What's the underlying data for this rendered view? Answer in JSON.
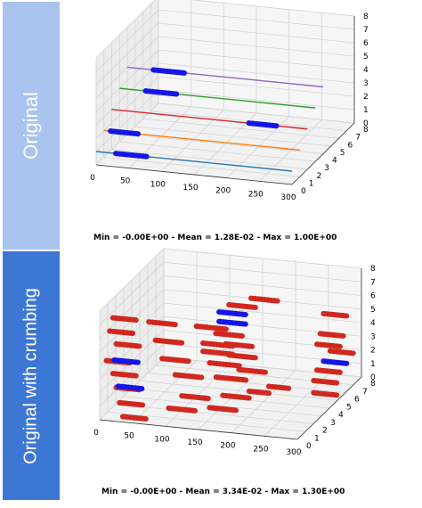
{
  "panels": [
    {
      "side_label": "Original",
      "stats": "Min = -0.00E+00 - Mean = 1.28E-02 - Max = 1.00E+00"
    },
    {
      "side_label": "Original with crumbing",
      "stats": "Min = -0.00E+00 - Mean = 3.34E-02 - Max = 1.30E+00"
    }
  ],
  "colors": {
    "tab_original": "#a8c3ee",
    "tab_crumbing": "#3d77d6",
    "highlight": "#1515e8",
    "crumb": "#d0281e"
  },
  "chart_data": [
    {
      "type": "line3d",
      "title": "",
      "x_ticks": [
        "0",
        "50",
        "100",
        "150",
        "200",
        "250",
        "300"
      ],
      "y_ticks": [
        "0",
        "1",
        "2",
        "3",
        "4",
        "5",
        "6",
        "7",
        "8"
      ],
      "z_ticks": [
        "0",
        "1",
        "2",
        "3",
        "4",
        "5",
        "6",
        "7",
        "8"
      ],
      "xlim": [
        0,
        300
      ],
      "ylim": [
        0,
        8
      ],
      "zlim": [
        0,
        8
      ],
      "grid": true,
      "series": [
        {
          "y": 0,
          "z": 1,
          "x": [
            0,
            300
          ],
          "color": "#1f77b4",
          "highlight": [
            [
              30,
              80
            ]
          ]
        },
        {
          "y": 1,
          "z": 2,
          "x": [
            0,
            300
          ],
          "color": "#ff7f0e",
          "highlight": [
            [
              10,
              55
            ]
          ]
        },
        {
          "y": 2,
          "z": 3,
          "x": [
            0,
            300
          ],
          "color": "#d62728",
          "highlight": [
            [
              210,
              255
            ]
          ]
        },
        {
          "y": 3,
          "z": 4,
          "x": [
            0,
            300
          ],
          "color": "#2ca02c",
          "highlight": [
            [
              40,
              90
            ]
          ]
        },
        {
          "y": 4,
          "z": 5,
          "x": [
            0,
            300
          ],
          "color": "#9467bd",
          "highlight": [
            [
              40,
              90
            ]
          ]
        }
      ]
    },
    {
      "type": "scatter3d",
      "title": "",
      "x_ticks": [
        "0",
        "50",
        "100",
        "150",
        "200",
        "250",
        "300"
      ],
      "y_ticks": [
        "0",
        "1",
        "2",
        "3",
        "4",
        "5",
        "6",
        "7",
        "8"
      ],
      "z_ticks": [
        "0",
        "1",
        "2",
        "3",
        "4",
        "5",
        "6",
        "7",
        "8"
      ],
      "xlim": [
        0,
        300
      ],
      "ylim": [
        0,
        8
      ],
      "zlim": [
        0,
        8
      ],
      "grid": true,
      "segments": [
        {
          "x": [
            20,
            55
          ],
          "y": 0,
          "z": 7.6,
          "c": "crumb"
        },
        {
          "x": [
            15,
            50
          ],
          "y": 0,
          "z": 6.6,
          "c": "crumb"
        },
        {
          "x": [
            25,
            60
          ],
          "y": 0,
          "z": 5.7,
          "c": "crumb"
        },
        {
          "x": [
            10,
            45
          ],
          "y": 0,
          "z": 4.4,
          "c": "crumb"
        },
        {
          "x": [
            20,
            55
          ],
          "y": 0,
          "z": 3.5,
          "c": "crumb"
        },
        {
          "x": [
            25,
            60
          ],
          "y": 0,
          "z": 2.5,
          "c": "crumb"
        },
        {
          "x": [
            30,
            65
          ],
          "y": 0,
          "z": 1.4,
          "c": "crumb"
        },
        {
          "x": [
            35,
            70
          ],
          "y": 0,
          "z": 0.4,
          "c": "crumb"
        },
        {
          "x": [
            22,
            58
          ],
          "y": 0,
          "z": 4.5,
          "c": "highlight"
        },
        {
          "x": [
            28,
            64
          ],
          "y": 0,
          "z": 2.6,
          "c": "highlight"
        },
        {
          "x": [
            60,
            100
          ],
          "y": 1.2,
          "z": 6.8,
          "c": "crumb"
        },
        {
          "x": [
            70,
            110
          ],
          "y": 1.2,
          "z": 5.5,
          "c": "crumb"
        },
        {
          "x": [
            80,
            120
          ],
          "y": 1.2,
          "z": 4.2,
          "c": "crumb"
        },
        {
          "x": [
            100,
            140
          ],
          "y": 1.2,
          "z": 3.1,
          "c": "crumb"
        },
        {
          "x": [
            110,
            150
          ],
          "y": 1.2,
          "z": 1.6,
          "c": "crumb"
        },
        {
          "x": [
            90,
            130
          ],
          "y": 1.2,
          "z": 0.6,
          "c": "crumb"
        },
        {
          "x": [
            120,
            165
          ],
          "y": 2.2,
          "z": 6.2,
          "c": "crumb"
        },
        {
          "x": [
            130,
            175
          ],
          "y": 2.2,
          "z": 5.0,
          "c": "crumb"
        },
        {
          "x": [
            130,
            175
          ],
          "y": 2.2,
          "z": 4.4,
          "c": "crumb"
        },
        {
          "x": [
            140,
            185
          ],
          "y": 2.2,
          "z": 3.6,
          "c": "crumb"
        },
        {
          "x": [
            150,
            195
          ],
          "y": 2.2,
          "z": 2.6,
          "c": "crumb"
        },
        {
          "x": [
            160,
            200
          ],
          "y": 2.2,
          "z": 1.3,
          "c": "crumb"
        },
        {
          "x": [
            140,
            180
          ],
          "y": 2.2,
          "z": 0.3,
          "c": "crumb"
        },
        {
          "x": [
            200,
            230
          ],
          "y": 2.2,
          "z": 1.8,
          "c": "crumb"
        },
        {
          "x": [
            230,
            260
          ],
          "y": 2.2,
          "z": 2.3,
          "c": "crumb"
        },
        {
          "x": [
            150,
            190
          ],
          "y": 3.8,
          "z": 7.0,
          "c": "crumb"
        },
        {
          "x": [
            135,
            175
          ],
          "y": 3.8,
          "z": 6.4,
          "c": "highlight"
        },
        {
          "x": [
            135,
            175
          ],
          "y": 3.8,
          "z": 5.7,
          "c": "highlight"
        },
        {
          "x": [
            130,
            170
          ],
          "y": 3.8,
          "z": 4.8,
          "c": "crumb"
        },
        {
          "x": [
            145,
            185
          ],
          "y": 3.8,
          "z": 4.1,
          "c": "crumb"
        },
        {
          "x": [
            150,
            190
          ],
          "y": 3.8,
          "z": 3.3,
          "c": "crumb"
        },
        {
          "x": [
            165,
            205
          ],
          "y": 3.8,
          "z": 2.3,
          "c": "crumb"
        },
        {
          "x": [
            175,
            215
          ],
          "y": 4.5,
          "z": 7.2,
          "c": "crumb"
        },
        {
          "x": [
            285,
            320
          ],
          "y": 4.5,
          "z": 6.6,
          "c": "crumb"
        },
        {
          "x": [
            280,
            315
          ],
          "y": 4.5,
          "z": 5.1,
          "c": "crumb"
        },
        {
          "x": [
            275,
            310
          ],
          "y": 4.5,
          "z": 4.3,
          "c": "crumb"
        },
        {
          "x": [
            295,
            330
          ],
          "y": 4.5,
          "z": 3.9,
          "c": "crumb"
        },
        {
          "x": [
            285,
            320
          ],
          "y": 4.5,
          "z": 3.1,
          "c": "highlight"
        },
        {
          "x": [
            275,
            310
          ],
          "y": 4.5,
          "z": 2.4,
          "c": "crumb"
        },
        {
          "x": [
            270,
            305
          ],
          "y": 4.5,
          "z": 1.6,
          "c": "crumb"
        },
        {
          "x": [
            270,
            305
          ],
          "y": 4.5,
          "z": 0.7,
          "c": "crumb"
        }
      ]
    }
  ]
}
